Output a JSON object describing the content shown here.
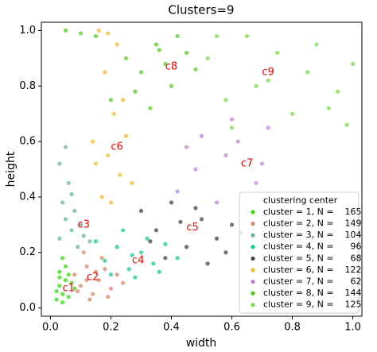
{
  "chart_data": {
    "type": "scatter",
    "title": "Clusters=9",
    "x_label": "width",
    "y_label": "height",
    "xlim": [
      -0.03,
      1.03
    ],
    "ylim": [
      -0.03,
      1.03
    ],
    "xticks": [
      {
        "value": 0,
        "label": "0.0"
      },
      0.2,
      0.4,
      0.6,
      0.8,
      {
        "value": 1,
        "label": "1.0"
      }
    ],
    "yticks": [
      {
        "value": 0,
        "label": "0.0"
      },
      0.2,
      0.4,
      0.6,
      0.8,
      {
        "value": 1,
        "label": "1.0"
      }
    ],
    "grid": false,
    "legend_position": "lower right",
    "center_label": "clustering center",
    "centers": [
      {
        "label": "c1",
        "x": 0.06,
        "y": 0.07
      },
      {
        "label": "c2",
        "x": 0.14,
        "y": 0.11
      },
      {
        "label": "c3",
        "x": 0.11,
        "y": 0.3
      },
      {
        "label": "c4",
        "x": 0.29,
        "y": 0.17
      },
      {
        "label": "c5",
        "x": 0.47,
        "y": 0.29
      },
      {
        "label": "c6",
        "x": 0.22,
        "y": 0.58
      },
      {
        "label": "c7",
        "x": 0.65,
        "y": 0.52
      },
      {
        "label": "c8",
        "x": 0.4,
        "y": 0.87
      },
      {
        "label": "c9",
        "x": 0.72,
        "y": 0.85
      }
    ],
    "series": [
      {
        "name": "cluster = 1, N =    165",
        "color": "#33dd11",
        "x": [
          0.02,
          0.03,
          0.04,
          0.05,
          0.03,
          0.06,
          0.02,
          0.04,
          0.07,
          0.05,
          0.03,
          0.08,
          0.04,
          0.06
        ],
        "y": [
          0.03,
          0.08,
          0.05,
          0.1,
          0.13,
          0.04,
          0.06,
          0.02,
          0.09,
          0.15,
          0.11,
          0.07,
          0.18,
          0.12
        ]
      },
      {
        "name": "cluster = 2, N =    149",
        "color": "#d98a66",
        "x": [
          0.08,
          0.1,
          0.12,
          0.14,
          0.16,
          0.18,
          0.2,
          0.22,
          0.11,
          0.13,
          0.17,
          0.09,
          0.15,
          0.24,
          0.19,
          0.12
        ],
        "y": [
          0.12,
          0.08,
          0.15,
          0.05,
          0.1,
          0.14,
          0.07,
          0.12,
          0.2,
          0.03,
          0.18,
          0.06,
          0.13,
          0.09,
          0.04,
          0.1
        ]
      },
      {
        "name": "cluster = 3, N =    104",
        "color": "#66b894",
        "x": [
          0.03,
          0.05,
          0.07,
          0.04,
          0.09,
          0.06,
          0.11,
          0.08,
          0.03,
          0.1,
          0.05,
          0.13,
          0.07
        ],
        "y": [
          0.25,
          0.32,
          0.28,
          0.38,
          0.22,
          0.45,
          0.26,
          0.35,
          0.52,
          0.3,
          0.58,
          0.24,
          0.41
        ]
      },
      {
        "name": "cluster = 4, N =      96",
        "color": "#11cc99",
        "x": [
          0.18,
          0.22,
          0.26,
          0.3,
          0.34,
          0.38,
          0.24,
          0.28,
          0.32,
          0.2,
          0.42,
          0.27,
          0.36,
          0.15
        ],
        "y": [
          0.17,
          0.22,
          0.14,
          0.2,
          0.16,
          0.23,
          0.28,
          0.11,
          0.25,
          0.12,
          0.18,
          0.19,
          0.13,
          0.24
        ]
      },
      {
        "name": "cluster = 5, N =      68",
        "color": "#444444",
        "x": [
          0.3,
          0.35,
          0.4,
          0.45,
          0.5,
          0.55,
          0.6,
          0.38,
          0.48,
          0.33,
          0.58,
          0.43,
          0.52,
          0.63
        ],
        "y": [
          0.35,
          0.28,
          0.38,
          0.22,
          0.32,
          0.25,
          0.3,
          0.18,
          0.36,
          0.24,
          0.2,
          0.31,
          0.16,
          0.27
        ]
      },
      {
        "name": "cluster = 6, N =    122",
        "color": "#f5b82e",
        "x": [
          0.17,
          0.19,
          0.21,
          0.23,
          0.25,
          0.15,
          0.18,
          0.22,
          0.2,
          0.24,
          0.16,
          0.27,
          0.14,
          0.19
        ],
        "y": [
          0.4,
          0.55,
          0.7,
          0.48,
          0.62,
          0.52,
          0.85,
          0.95,
          0.38,
          0.75,
          1.0,
          0.45,
          0.6,
          0.99
        ]
      },
      {
        "name": "cluster = 7, N =      62",
        "color": "#c47fdd",
        "x": [
          0.42,
          0.48,
          0.55,
          0.62,
          0.68,
          0.72,
          0.58,
          0.65,
          0.5,
          0.6,
          0.7,
          0.45
        ],
        "y": [
          0.42,
          0.5,
          0.38,
          0.6,
          0.45,
          0.65,
          0.55,
          0.35,
          0.62,
          0.68,
          0.52,
          0.58
        ]
      },
      {
        "name": "cluster = 8, N =    144",
        "color": "#55cc22",
        "x": [
          0.05,
          0.1,
          0.15,
          0.25,
          0.3,
          0.35,
          0.4,
          0.45,
          0.28,
          0.33,
          0.38,
          0.2,
          0.42,
          0.48,
          0.36
        ],
        "y": [
          1.0,
          0.99,
          0.98,
          0.9,
          0.85,
          0.95,
          0.8,
          0.92,
          0.78,
          0.72,
          0.88,
          0.75,
          0.98,
          0.86,
          0.93
        ]
      },
      {
        "name": "cluster = 9, N =    125",
        "color": "#77dd44",
        "x": [
          0.52,
          0.58,
          0.65,
          0.72,
          0.8,
          0.88,
          0.95,
          1.0,
          0.6,
          0.75,
          0.85,
          0.92,
          0.68,
          0.55,
          0.98
        ],
        "y": [
          0.9,
          0.75,
          0.98,
          0.82,
          0.7,
          0.95,
          0.78,
          0.88,
          0.65,
          0.92,
          0.85,
          0.72,
          0.8,
          0.98,
          0.66
        ]
      }
    ]
  }
}
